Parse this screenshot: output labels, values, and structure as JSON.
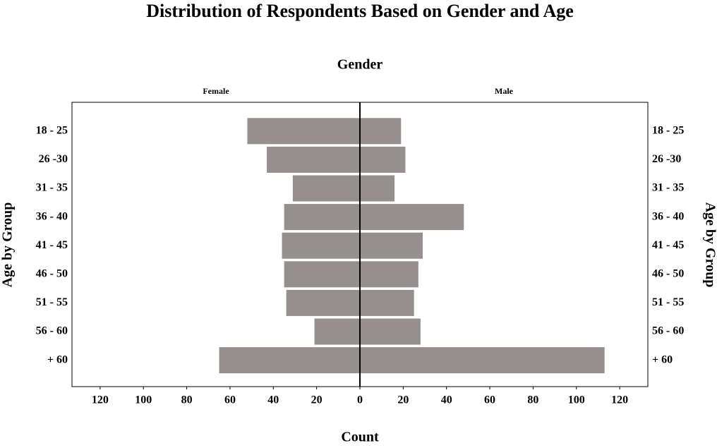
{
  "chart_data": {
    "type": "pyramid",
    "title": "Distribution of Respondents Based on Gender and Age",
    "group_title": "Gender",
    "x_label": "Count",
    "y_label": "Age by Group",
    "categories": [
      "18 - 25",
      "26 -30",
      "31 - 35",
      "36 - 40",
      "41 - 45",
      "46 - 50",
      "51 - 55",
      "56 - 60",
      "+ 60"
    ],
    "series": [
      {
        "name": "Female",
        "color": "#958f8d",
        "values": [
          52,
          43,
          31,
          35,
          36,
          35,
          34,
          21,
          65
        ]
      },
      {
        "name": "Male",
        "color": "#958f8d",
        "values": [
          19,
          21,
          16,
          48,
          29,
          27,
          25,
          28,
          113
        ]
      }
    ],
    "xlim": [
      0,
      133
    ],
    "xticks": [
      0,
      20,
      40,
      60,
      80,
      100,
      120
    ]
  }
}
